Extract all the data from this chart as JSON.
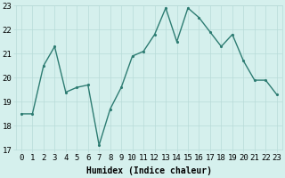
{
  "x": [
    0,
    1,
    2,
    3,
    4,
    5,
    6,
    7,
    8,
    9,
    10,
    11,
    12,
    13,
    14,
    15,
    16,
    17,
    18,
    19,
    20,
    21,
    22,
    23
  ],
  "y": [
    18.5,
    18.5,
    20.5,
    21.3,
    19.4,
    19.6,
    19.7,
    17.2,
    18.7,
    19.6,
    20.9,
    21.1,
    21.8,
    22.9,
    21.5,
    22.9,
    22.5,
    21.9,
    21.3,
    21.8,
    20.7,
    19.9,
    19.9,
    19.3
  ],
  "line_color": "#2d7c72",
  "marker": ".",
  "marker_color": "#2d7c72",
  "background_color": "#d5f0ed",
  "grid_color": "#b8dbd8",
  "xlabel": "Humidex (Indice chaleur)",
  "xlim": [
    -0.5,
    23.5
  ],
  "ylim": [
    17,
    23
  ],
  "yticks": [
    17,
    18,
    19,
    20,
    21,
    22,
    23
  ],
  "xticks": [
    0,
    1,
    2,
    3,
    4,
    5,
    6,
    7,
    8,
    9,
    10,
    11,
    12,
    13,
    14,
    15,
    16,
    17,
    18,
    19,
    20,
    21,
    22,
    23
  ],
  "xlabel_fontsize": 7.0,
  "tick_fontsize": 6.5,
  "line_width": 1.0,
  "marker_size": 2.5
}
